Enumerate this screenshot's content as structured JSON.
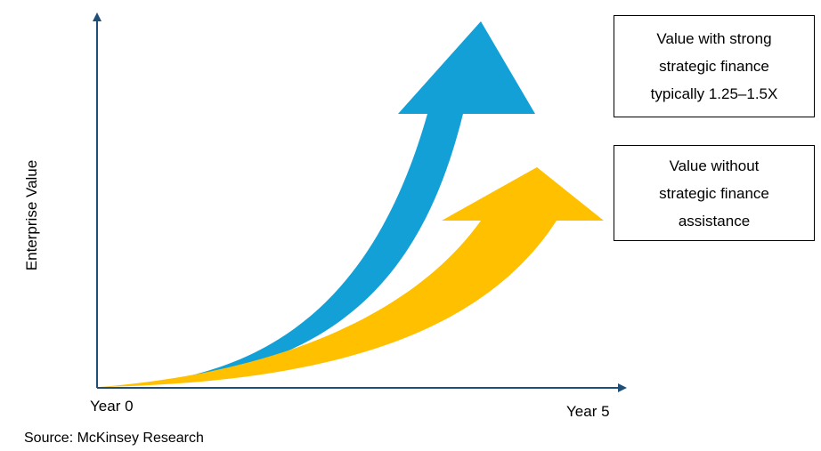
{
  "axes": {
    "y_label": "Enterprise Value",
    "x_start_label": "Year 0",
    "x_end_label": "Year 5",
    "color": "#1f4e79"
  },
  "series": [
    {
      "callout_lines": [
        "Value with strong",
        "strategic finance",
        "typically 1.25–1.5X"
      ],
      "color": "#12a0d7"
    },
    {
      "callout_lines": [
        "Value without",
        "strategic finance",
        "assistance"
      ],
      "color": "#ffc000"
    }
  ],
  "source": "Source: McKinsey Research"
}
